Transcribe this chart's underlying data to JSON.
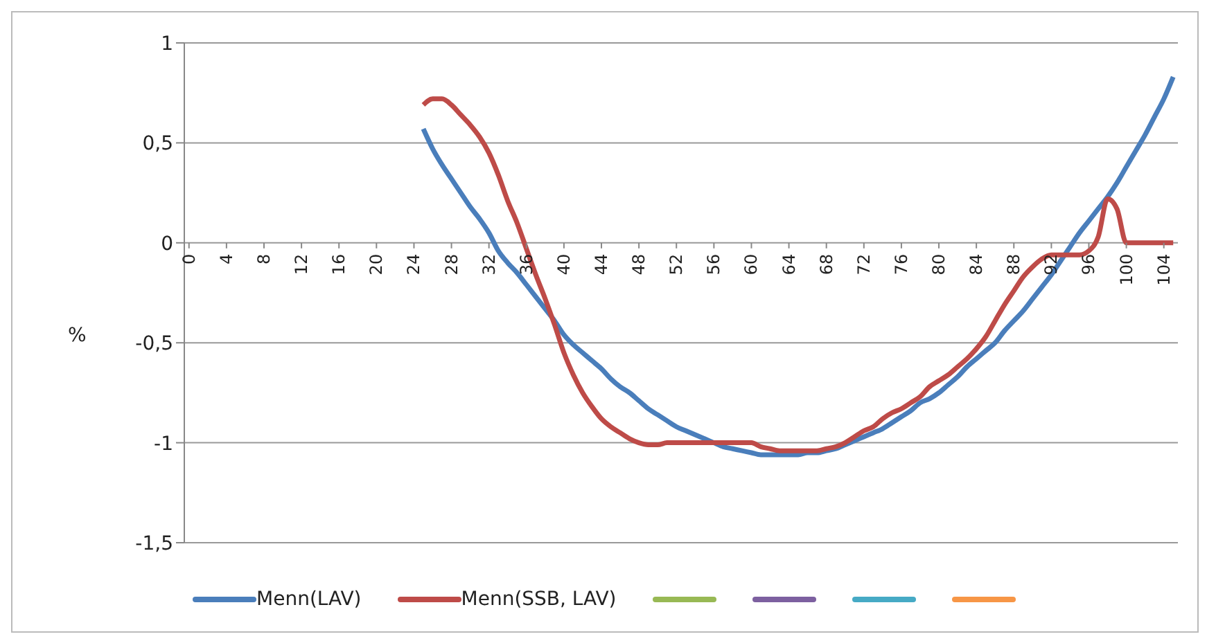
{
  "chart_data": {
    "type": "line",
    "ylabel": "%",
    "x": [
      25,
      26,
      27,
      28,
      29,
      30,
      31,
      32,
      33,
      34,
      35,
      36,
      37,
      38,
      39,
      40,
      41,
      42,
      43,
      44,
      45,
      46,
      47,
      48,
      49,
      50,
      51,
      52,
      53,
      54,
      55,
      56,
      57,
      58,
      59,
      60,
      61,
      62,
      63,
      64,
      65,
      66,
      67,
      68,
      69,
      70,
      71,
      72,
      73,
      74,
      75,
      76,
      77,
      78,
      79,
      80,
      81,
      82,
      83,
      84,
      85,
      86,
      87,
      88,
      89,
      90,
      91,
      92,
      93,
      94,
      95,
      96,
      97,
      98,
      99,
      100,
      101,
      102,
      103,
      104,
      105
    ],
    "series": [
      {
        "name": "Menn(LAV)",
        "color": "#4a7ebb",
        "values": [
          0.57,
          0.47,
          0.39,
          0.32,
          0.25,
          0.18,
          0.12,
          0.05,
          -0.04,
          -0.1,
          -0.15,
          -0.21,
          -0.27,
          -0.33,
          -0.39,
          -0.46,
          -0.51,
          -0.55,
          -0.59,
          -0.63,
          -0.68,
          -0.72,
          -0.75,
          -0.79,
          -0.83,
          -0.86,
          -0.89,
          -0.92,
          -0.94,
          -0.96,
          -0.98,
          -1.0,
          -1.02,
          -1.03,
          -1.04,
          -1.05,
          -1.06,
          -1.06,
          -1.06,
          -1.06,
          -1.06,
          -1.05,
          -1.05,
          -1.04,
          -1.03,
          -1.01,
          -0.99,
          -0.97,
          -0.95,
          -0.93,
          -0.9,
          -0.87,
          -0.84,
          -0.8,
          -0.78,
          -0.75,
          -0.71,
          -0.67,
          -0.62,
          -0.58,
          -0.54,
          -0.5,
          -0.44,
          -0.39,
          -0.34,
          -0.28,
          -0.22,
          -0.16,
          -0.09,
          -0.02,
          0.05,
          0.11,
          0.17,
          0.23,
          0.3,
          0.38,
          0.46,
          0.54,
          0.63,
          0.72,
          0.83
        ]
      },
      {
        "name": "Menn(SSB, LAV)",
        "color": "#be4b48",
        "values": [
          0.69,
          0.72,
          0.72,
          0.69,
          0.64,
          0.59,
          0.53,
          0.45,
          0.34,
          0.21,
          0.1,
          -0.03,
          -0.16,
          -0.28,
          -0.41,
          -0.55,
          -0.66,
          -0.75,
          -0.82,
          -0.88,
          -0.92,
          -0.95,
          -0.98,
          -1.0,
          -1.01,
          -1.01,
          -1.0,
          -1.0,
          -1.0,
          -1.0,
          -1.0,
          -1.0,
          -1.0,
          -1.0,
          -1.0,
          -1.0,
          -1.02,
          -1.03,
          -1.04,
          -1.04,
          -1.04,
          -1.04,
          -1.04,
          -1.03,
          -1.02,
          -1.0,
          -0.97,
          -0.94,
          -0.92,
          -0.88,
          -0.85,
          -0.83,
          -0.8,
          -0.77,
          -0.72,
          -0.69,
          -0.66,
          -0.62,
          -0.58,
          -0.53,
          -0.47,
          -0.39,
          -0.31,
          -0.24,
          -0.17,
          -0.12,
          -0.08,
          -0.06,
          -0.06,
          -0.06,
          -0.06,
          -0.04,
          0.03,
          0.22,
          0.17,
          0.0,
          0.0,
          0.0,
          0.0,
          0.0,
          0.0
        ]
      },
      {
        "color": "#98b954",
        "values": [
          null,
          null,
          null,
          null,
          null,
          null,
          null,
          null,
          null,
          null,
          null,
          null,
          null,
          null,
          null,
          null,
          null,
          null,
          null,
          null,
          null,
          null,
          null,
          null,
          null,
          null,
          null,
          null,
          null,
          null,
          null,
          null,
          null,
          null,
          null,
          null,
          null,
          null,
          null,
          null,
          null,
          null,
          null,
          null,
          null,
          null,
          null,
          null,
          null,
          null,
          null,
          null,
          null,
          null,
          null,
          null,
          null,
          null,
          null,
          null,
          null,
          null,
          null,
          null,
          null,
          null,
          null,
          null,
          null,
          null,
          null,
          null,
          null,
          null,
          null,
          null,
          null,
          null,
          null,
          null,
          null
        ]
      },
      {
        "color": "#7d60a0",
        "values": [
          null,
          null,
          null,
          null,
          null,
          null,
          null,
          null,
          null,
          null,
          null,
          null,
          null,
          null,
          null,
          null,
          null,
          null,
          null,
          null,
          null,
          null,
          null,
          null,
          null,
          null,
          null,
          null,
          null,
          null,
          null,
          null,
          null,
          null,
          null,
          null,
          null,
          null,
          null,
          null,
          null,
          null,
          null,
          null,
          null,
          null,
          null,
          null,
          null,
          null,
          null,
          null,
          null,
          null,
          null,
          null,
          null,
          null,
          null,
          null,
          null,
          null,
          null,
          null,
          null,
          null,
          null,
          null,
          null,
          null,
          null,
          null,
          null,
          null,
          null,
          null,
          null,
          null,
          null,
          null,
          null
        ]
      },
      {
        "color": "#46aac5",
        "values": [
          null,
          null,
          null,
          null,
          null,
          null,
          null,
          null,
          null,
          null,
          null,
          null,
          null,
          null,
          null,
          null,
          null,
          null,
          null,
          null,
          null,
          null,
          null,
          null,
          null,
          null,
          null,
          null,
          null,
          null,
          null,
          null,
          null,
          null,
          null,
          null,
          null,
          null,
          null,
          null,
          null,
          null,
          null,
          null,
          null,
          null,
          null,
          null,
          null,
          null,
          null,
          null,
          null,
          null,
          null,
          null,
          null,
          null,
          null,
          null,
          null,
          null,
          null,
          null,
          null,
          null,
          null,
          null,
          null,
          null,
          null,
          null,
          null,
          null,
          null,
          null,
          null,
          null,
          null,
          null,
          null
        ]
      },
      {
        "color": "#f79646",
        "values": [
          null,
          null,
          null,
          null,
          null,
          null,
          null,
          null,
          null,
          null,
          null,
          null,
          null,
          null,
          null,
          null,
          null,
          null,
          null,
          null,
          null,
          null,
          null,
          null,
          null,
          null,
          null,
          null,
          null,
          null,
          null,
          null,
          null,
          null,
          null,
          null,
          null,
          null,
          null,
          null,
          null,
          null,
          null,
          null,
          null,
          null,
          null,
          null,
          null,
          null,
          null,
          null,
          null,
          null,
          null,
          null,
          null,
          null,
          null,
          null,
          null,
          null,
          null,
          null,
          null,
          null,
          null,
          null,
          null,
          null,
          null,
          null,
          null,
          null,
          null,
          null,
          null,
          null,
          null,
          null,
          null
        ]
      }
    ],
    "xlim": [
      -0.5,
      105.5
    ],
    "xticks": [
      0,
      4,
      8,
      12,
      16,
      20,
      24,
      28,
      32,
      36,
      40,
      44,
      48,
      52,
      56,
      60,
      64,
      68,
      72,
      76,
      80,
      84,
      88,
      92,
      96,
      100,
      104
    ],
    "ylim": [
      -1.5,
      1
    ],
    "yticks": [
      {
        "value": -1.5,
        "label": "-1,5"
      },
      {
        "value": -1,
        "label": "-1"
      },
      {
        "value": -0.5,
        "label": "-0,5"
      },
      {
        "value": 0,
        "label": "0"
      },
      {
        "value": 0.5,
        "label": "0,5"
      },
      {
        "value": 1,
        "label": "1"
      }
    ],
    "grid": "y",
    "legend": "bottom",
    "marker": "none",
    "line_style": "solid"
  }
}
